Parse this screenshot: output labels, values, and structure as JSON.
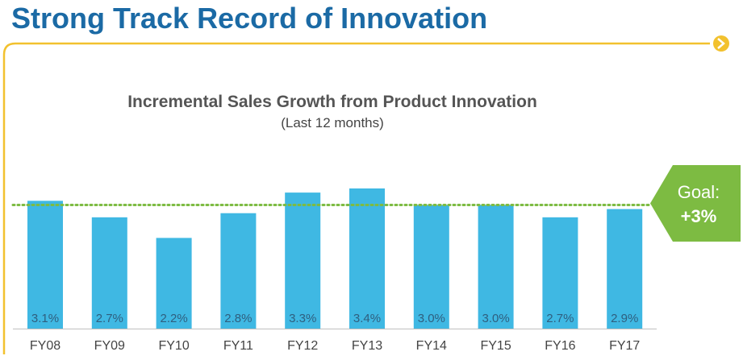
{
  "slide": {
    "title": "Strong Track Record of Innovation"
  },
  "colors": {
    "title": "#1b6aa5",
    "frame": "#f2c12e",
    "bar": "#3fb8e3",
    "bar_label": "#2f5f7f",
    "goal_line": "#7dbb42",
    "goal_badge": "#7dbb42"
  },
  "goal": {
    "label": "Goal:",
    "value_text": "+3%",
    "value": 3.0
  },
  "chart_data": {
    "type": "bar",
    "title": "Incremental Sales Growth from Product Innovation",
    "subtitle": "(Last 12 months)",
    "categories": [
      "FY08",
      "FY09",
      "FY10",
      "FY11",
      "FY12",
      "FY13",
      "FY14",
      "FY15",
      "FY16",
      "FY17"
    ],
    "values": [
      3.1,
      2.7,
      2.2,
      2.8,
      3.3,
      3.4,
      3.0,
      3.0,
      2.7,
      2.9
    ],
    "value_labels": [
      "3.1%",
      "2.7%",
      "2.2%",
      "2.8%",
      "3.3%",
      "3.4%",
      "3.0%",
      "3.0%",
      "2.7%",
      "2.9%"
    ],
    "reference_line": 3.0,
    "xlabel": "",
    "ylabel": "",
    "ylim": [
      0,
      3.4
    ],
    "grid": false,
    "legend": "none"
  }
}
